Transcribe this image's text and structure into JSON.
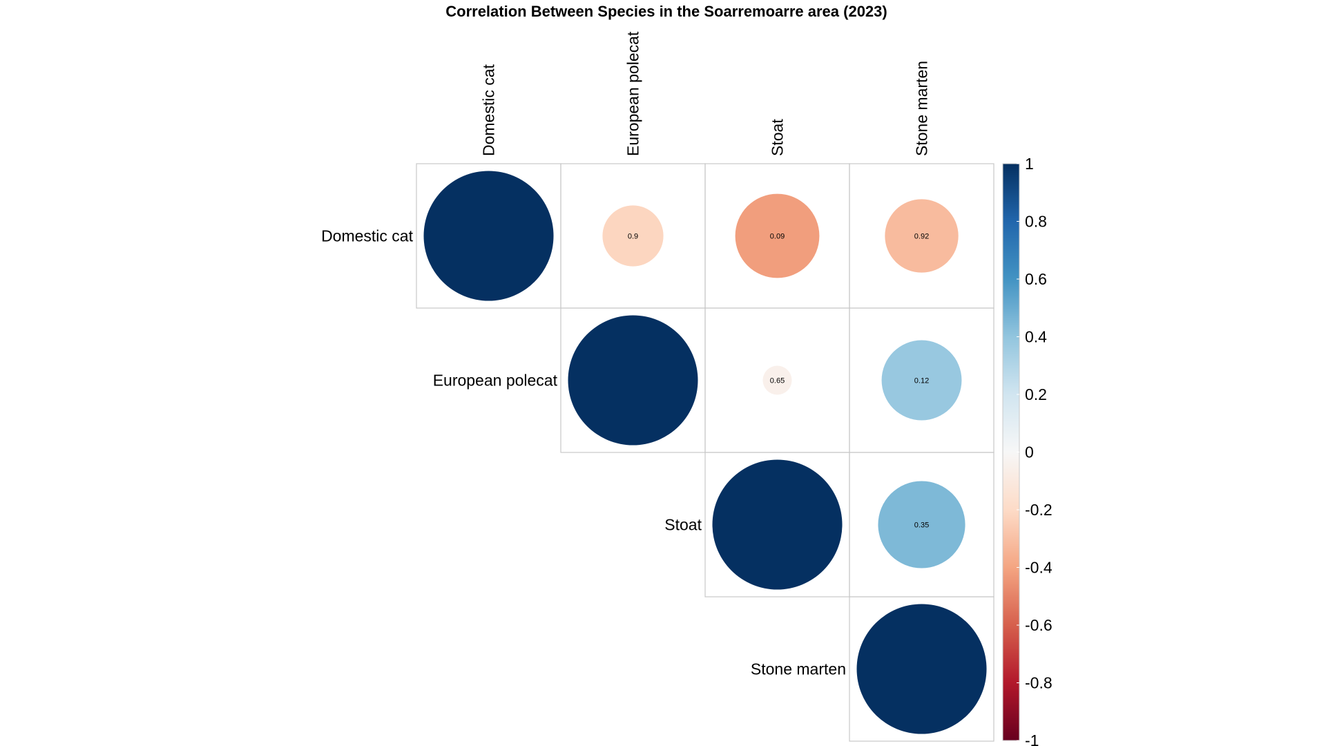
{
  "chart_data": {
    "type": "heatmap",
    "subtype": "correlation-circles-upper",
    "title": "Correlation Between Species in the Soarremoarre area (2023)",
    "variables": [
      "Domestic cat",
      "European polecat",
      "Stoat",
      "Stone marten"
    ],
    "correlations": [
      [
        1.0,
        -0.22,
        -0.42,
        -0.32
      ],
      [
        -0.22,
        1.0,
        -0.05,
        0.38
      ],
      [
        -0.42,
        -0.05,
        1.0,
        0.45
      ],
      [
        -0.32,
        0.38,
        0.45,
        1.0
      ]
    ],
    "cell_labels": [
      [
        "",
        "0.9",
        "0.09",
        "0.92"
      ],
      [
        "",
        "",
        "0.65",
        "0.12"
      ],
      [
        "",
        "",
        "",
        "0.35"
      ],
      [
        "",
        "",
        "",
        ""
      ]
    ],
    "colorbar": {
      "range": [
        -1,
        1
      ],
      "ticks": [
        "1",
        "0.8",
        "0.6",
        "0.4",
        "0.2",
        "0",
        "-0.2",
        "-0.4",
        "-0.6",
        "-0.8",
        "-1"
      ]
    },
    "colors": {
      "strong_negative": "#67001F",
      "neutral": "#F7F7F7",
      "strong_positive": "#053061"
    }
  }
}
